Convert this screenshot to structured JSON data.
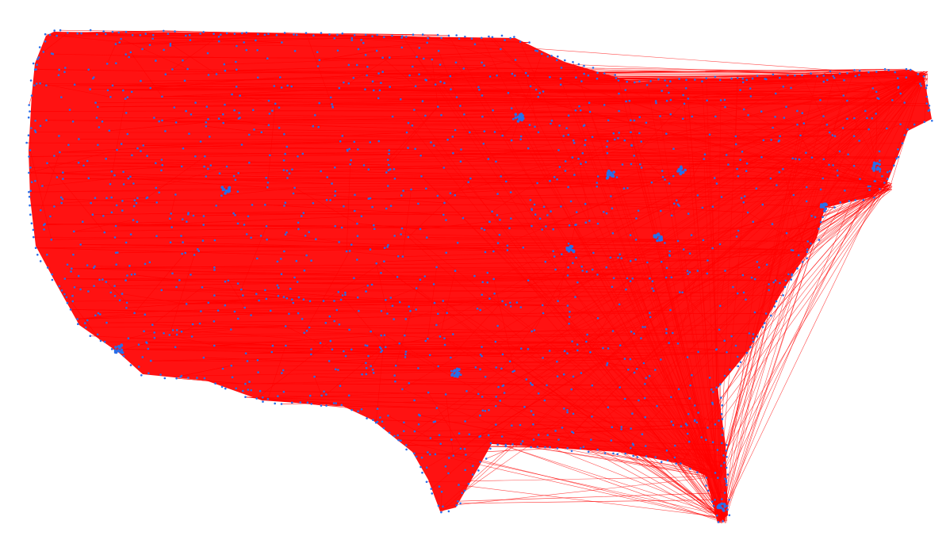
{
  "diagram": {
    "kind": "network-graph",
    "description_visible_text": "",
    "colors": {
      "background": "#ffffff",
      "edge": "#ff0000",
      "node": "#2a6ee8"
    },
    "node_count_estimate": 2000,
    "labels": []
  }
}
